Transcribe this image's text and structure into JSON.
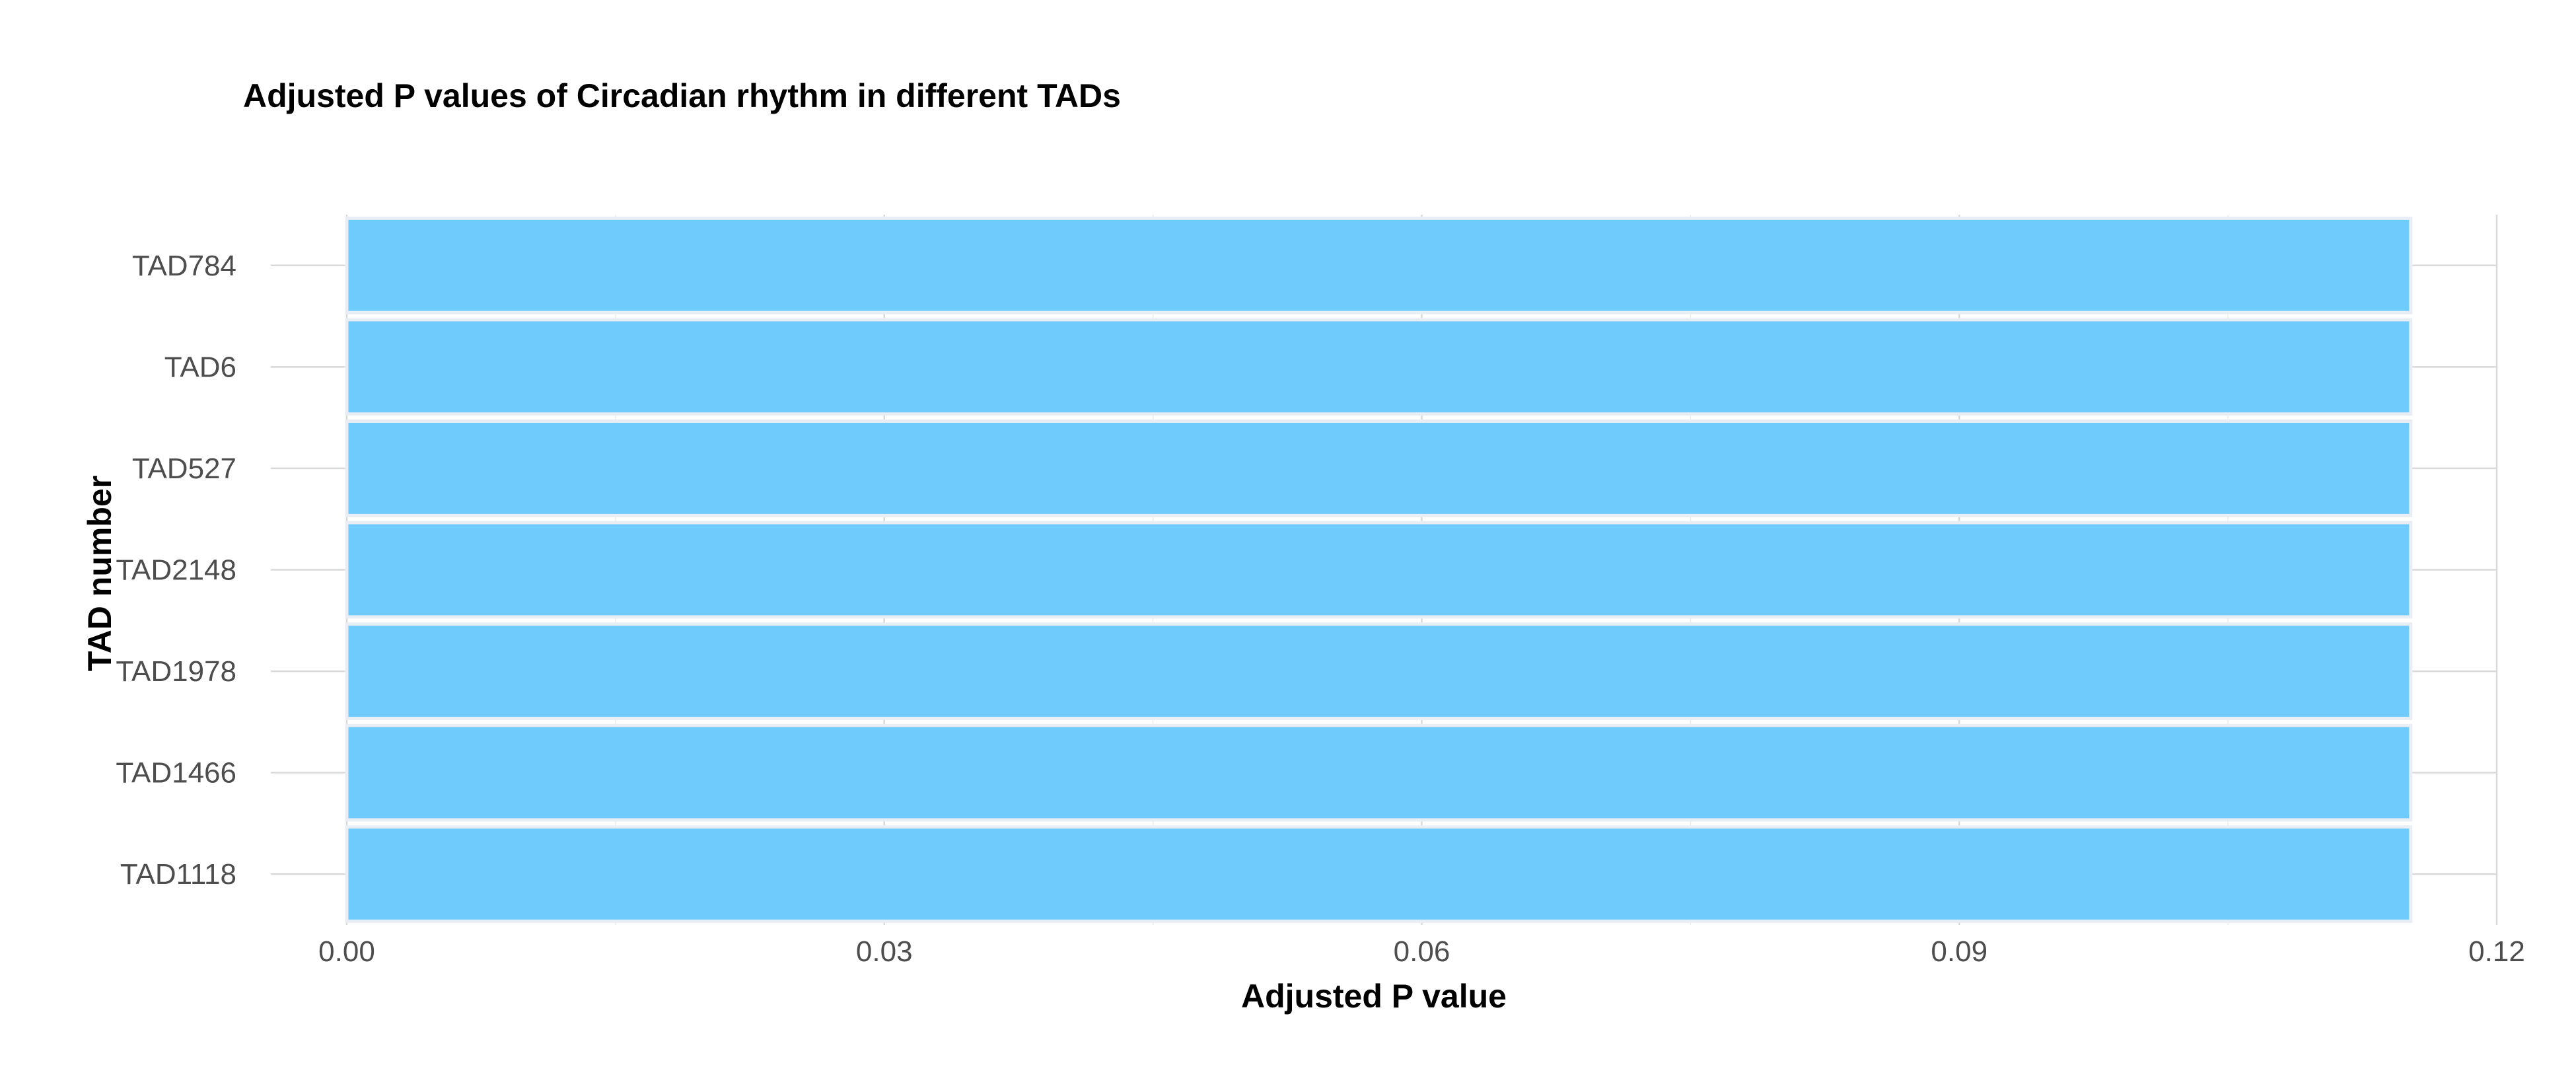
{
  "chart_data": {
    "type": "bar",
    "orientation": "horizontal",
    "title": "Adjusted P values of Circadian rhythm in different TADs",
    "xlabel": "Adjusted P value",
    "ylabel": "TAD number",
    "categories": [
      "TAD784",
      "TAD6",
      "TAD527",
      "TAD2148",
      "TAD1978",
      "TAD1466",
      "TAD1118"
    ],
    "values": [
      0.1152,
      0.1152,
      0.1152,
      0.1152,
      0.1152,
      0.1152,
      0.1152
    ],
    "xlim": [
      0,
      0.12
    ],
    "xticks": [
      0,
      0.03,
      0.06,
      0.09,
      0.12
    ],
    "xtick_labels": [
      "0.00",
      "0.03",
      "0.06",
      "0.09",
      "0.12"
    ],
    "grid": true,
    "legend": "none",
    "bar_color": "#6ecbfb"
  }
}
